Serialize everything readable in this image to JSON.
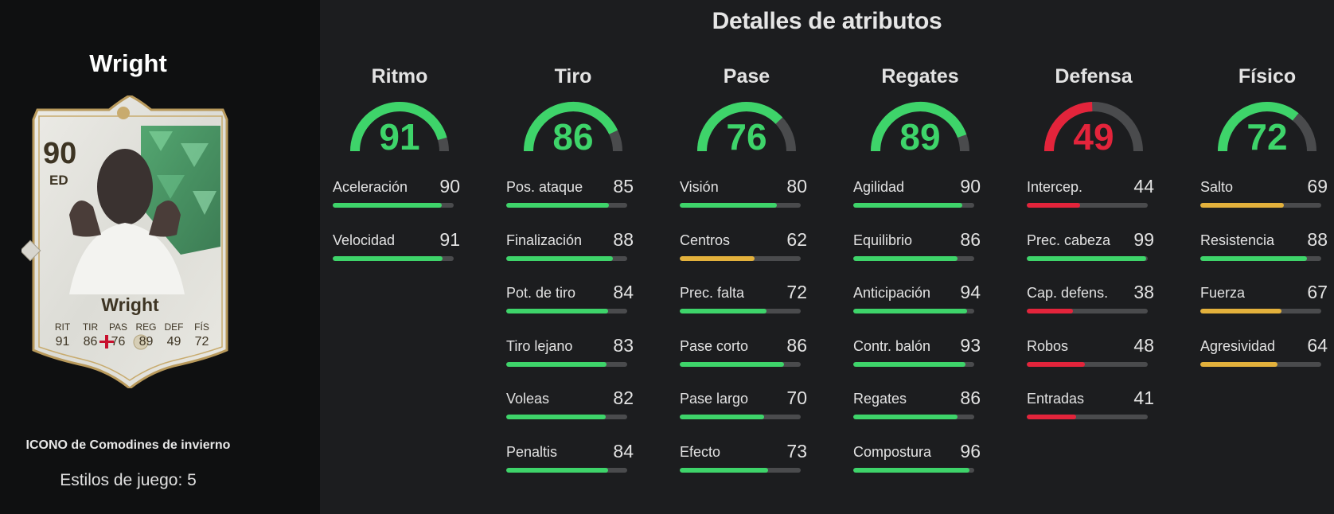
{
  "colors": {
    "green": "#3ed46a",
    "yellow": "#e3b13c",
    "red": "#e3243b",
    "track": "#4a4b4d"
  },
  "player": {
    "name": "Wright",
    "rating": "90",
    "position": "ED",
    "card_name": "Wright",
    "card_type": "ICONO de Comodines de invierno",
    "playstyles": "Estilos de juego: 5",
    "nation_icon": "england-flag-icon",
    "card_stats": [
      {
        "label": "RIT",
        "value": "91"
      },
      {
        "label": "TIR",
        "value": "86"
      },
      {
        "label": "PAS",
        "value": "76"
      },
      {
        "label": "REG",
        "value": "89"
      },
      {
        "label": "DEF",
        "value": "49"
      },
      {
        "label": "FÍS",
        "value": "72"
      }
    ]
  },
  "heading": "Detalles de atributos",
  "categories": [
    {
      "name": "Ritmo",
      "value": 91,
      "stats": [
        {
          "label": "Aceleración",
          "value": 90
        },
        {
          "label": "Velocidad",
          "value": 91
        }
      ]
    },
    {
      "name": "Tiro",
      "value": 86,
      "stats": [
        {
          "label": "Pos. ataque",
          "value": 85
        },
        {
          "label": "Finalización",
          "value": 88
        },
        {
          "label": "Pot. de tiro",
          "value": 84
        },
        {
          "label": "Tiro lejano",
          "value": 83
        },
        {
          "label": "Voleas",
          "value": 82
        },
        {
          "label": "Penaltis",
          "value": 84
        }
      ]
    },
    {
      "name": "Pase",
      "value": 76,
      "stats": [
        {
          "label": "Visión",
          "value": 80
        },
        {
          "label": "Centros",
          "value": 62
        },
        {
          "label": "Prec. falta",
          "value": 72
        },
        {
          "label": "Pase corto",
          "value": 86
        },
        {
          "label": "Pase largo",
          "value": 70
        },
        {
          "label": "Efecto",
          "value": 73
        }
      ]
    },
    {
      "name": "Regates",
      "value": 89,
      "stats": [
        {
          "label": "Agilidad",
          "value": 90
        },
        {
          "label": "Equilibrio",
          "value": 86
        },
        {
          "label": "Anticipación",
          "value": 94
        },
        {
          "label": "Contr. balón",
          "value": 93
        },
        {
          "label": "Regates",
          "value": 86
        },
        {
          "label": "Compostura",
          "value": 96
        }
      ]
    },
    {
      "name": "Defensa",
      "value": 49,
      "stats": [
        {
          "label": "Intercep.",
          "value": 44
        },
        {
          "label": "Prec. cabeza",
          "value": 99
        },
        {
          "label": "Cap. defens.",
          "value": 38
        },
        {
          "label": "Robos",
          "value": 48
        },
        {
          "label": "Entradas",
          "value": 41
        }
      ]
    },
    {
      "name": "Físico",
      "value": 72,
      "stats": [
        {
          "label": "Salto",
          "value": 69
        },
        {
          "label": "Resistencia",
          "value": 88
        },
        {
          "label": "Fuerza",
          "value": 67
        },
        {
          "label": "Agresividad",
          "value": 64
        }
      ]
    }
  ]
}
